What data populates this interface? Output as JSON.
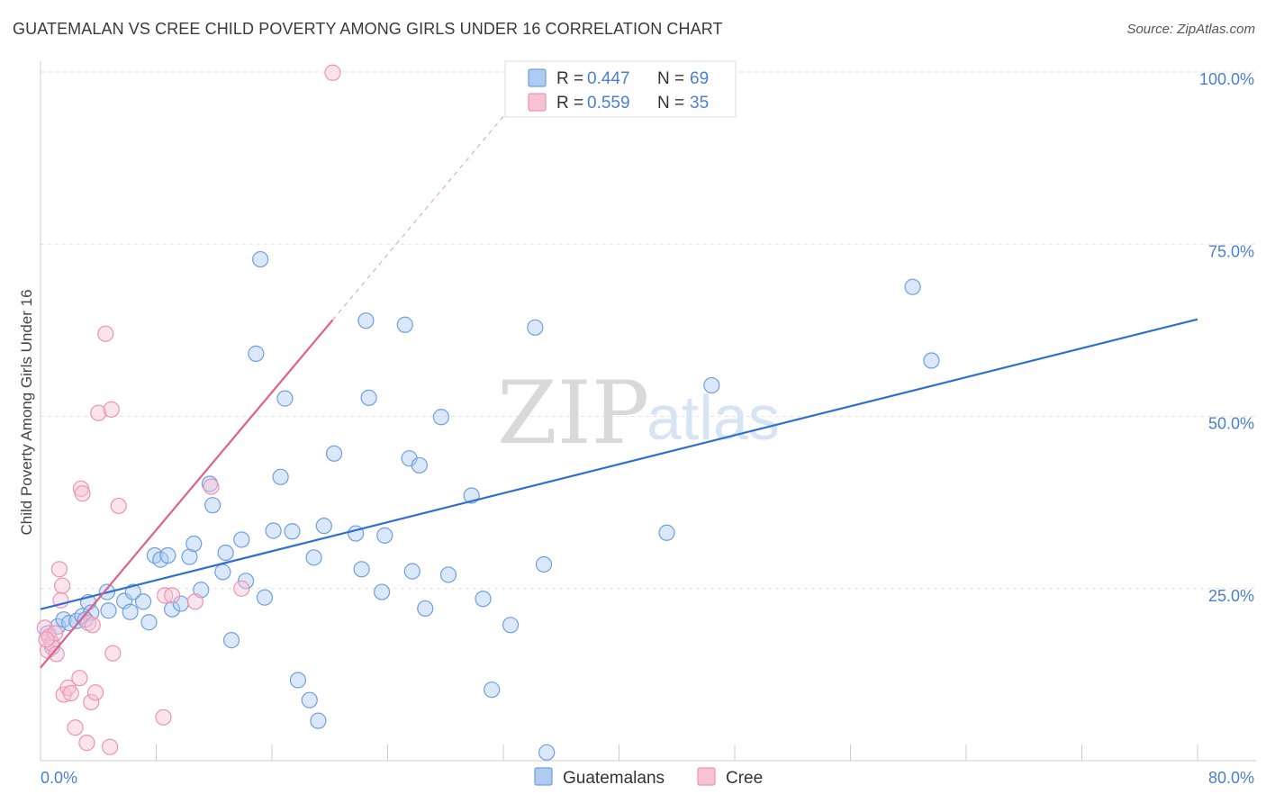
{
  "title": "GUATEMALAN VS CREE CHILD POVERTY AMONG GIRLS UNDER 16 CORRELATION CHART",
  "source": "Source: ZipAtlas.com",
  "watermark": {
    "zip": "ZIP",
    "atlas": "atlas"
  },
  "colors": {
    "blue": "#6f9fe0",
    "blue_fill": "#aecbf2",
    "blue_line": "#2f6fd0",
    "pink": "#ee93b0",
    "pink_fill": "#f7c3d4",
    "pink_line": "#e0608a",
    "tick_text": "#4a7fd0",
    "grid": "#e2e2e2"
  },
  "legend_top": {
    "r_label": "R =",
    "n_label": "N =",
    "entries": [
      {
        "series": "Guatemalans",
        "r": "0.447",
        "n": "69"
      },
      {
        "series": "Cree",
        "r": "0.559",
        "n": "35"
      }
    ]
  },
  "chart_data": {
    "type": "scatter",
    "title": "GUATEMALAN VS CREE CHILD POVERTY AMONG GIRLS UNDER 16 CORRELATION CHART",
    "xlabel": "",
    "ylabel": "Child Poverty Among Girls Under 16",
    "xlim": [
      0,
      80
    ],
    "ylim": [
      0,
      100
    ],
    "x_tick_labels": [
      "0.0%",
      "80.0%"
    ],
    "y_tick_labels": [
      "25.0%",
      "50.0%",
      "75.0%",
      "100.0%"
    ],
    "y_ticks": [
      25,
      50,
      75,
      100
    ],
    "grid": true,
    "legend_position": "bottom-center",
    "series": [
      {
        "name": "Guatemalans",
        "color": "#6f9fe0",
        "points": [
          [
            0.5,
            18.5
          ],
          [
            1.2,
            19.5
          ],
          [
            1.6,
            20.5
          ],
          [
            2.0,
            20.0
          ],
          [
            2.5,
            20.3
          ],
          [
            2.9,
            21.0
          ],
          [
            3.3,
            23.0
          ],
          [
            3.5,
            21.5
          ],
          [
            4.6,
            24.5
          ],
          [
            4.7,
            21.8
          ],
          [
            5.8,
            23.2
          ],
          [
            6.2,
            21.6
          ],
          [
            6.4,
            24.5
          ],
          [
            7.1,
            23.1
          ],
          [
            7.5,
            20.1
          ],
          [
            7.9,
            29.8
          ],
          [
            8.3,
            29.2
          ],
          [
            8.8,
            29.8
          ],
          [
            9.1,
            22.0
          ],
          [
            9.7,
            22.8
          ],
          [
            10.3,
            29.6
          ],
          [
            10.6,
            31.5
          ],
          [
            11.1,
            24.8
          ],
          [
            11.7,
            40.2
          ],
          [
            11.9,
            37.1
          ],
          [
            12.6,
            27.4
          ],
          [
            12.8,
            30.2
          ],
          [
            13.2,
            17.5
          ],
          [
            13.9,
            32.1
          ],
          [
            14.2,
            26.1
          ],
          [
            14.9,
            59.1
          ],
          [
            15.2,
            72.8
          ],
          [
            15.5,
            23.7
          ],
          [
            16.1,
            33.4
          ],
          [
            16.6,
            41.2
          ],
          [
            16.9,
            52.6
          ],
          [
            17.4,
            33.3
          ],
          [
            17.8,
            11.7
          ],
          [
            18.6,
            8.8
          ],
          [
            18.9,
            29.5
          ],
          [
            19.2,
            5.8
          ],
          [
            19.6,
            34.1
          ],
          [
            20.3,
            44.6
          ],
          [
            21.8,
            33.0
          ],
          [
            22.2,
            27.8
          ],
          [
            22.5,
            63.9
          ],
          [
            22.7,
            52.7
          ],
          [
            23.6,
            24.5
          ],
          [
            23.8,
            32.7
          ],
          [
            25.2,
            63.3
          ],
          [
            25.5,
            43.9
          ],
          [
            25.7,
            27.5
          ],
          [
            26.2,
            42.9
          ],
          [
            26.6,
            22.1
          ],
          [
            27.7,
            49.9
          ],
          [
            28.2,
            27.0
          ],
          [
            29.8,
            38.5
          ],
          [
            30.6,
            23.5
          ],
          [
            31.2,
            10.3
          ],
          [
            32.5,
            19.7
          ],
          [
            34.2,
            62.9
          ],
          [
            34.8,
            28.5
          ],
          [
            35.0,
            1.2
          ],
          [
            43.3,
            33.1
          ],
          [
            46.4,
            54.5
          ],
          [
            60.3,
            68.8
          ],
          [
            61.6,
            58.1
          ],
          [
            0.8,
            16.5
          ],
          [
            3.1,
            20.5
          ]
        ]
      },
      {
        "name": "Cree",
        "color": "#ee93b0",
        "points": [
          [
            0.3,
            19.3
          ],
          [
            0.5,
            16.0
          ],
          [
            0.6,
            18.0
          ],
          [
            0.8,
            17.0
          ],
          [
            1.0,
            18.5
          ],
          [
            1.1,
            15.5
          ],
          [
            1.3,
            27.8
          ],
          [
            1.4,
            23.3
          ],
          [
            1.5,
            25.4
          ],
          [
            1.6,
            9.6
          ],
          [
            1.9,
            10.6
          ],
          [
            2.1,
            9.8
          ],
          [
            2.4,
            4.8
          ],
          [
            2.7,
            12.0
          ],
          [
            2.8,
            39.5
          ],
          [
            2.9,
            38.8
          ],
          [
            3.2,
            2.6
          ],
          [
            3.3,
            20.0
          ],
          [
            3.5,
            8.5
          ],
          [
            3.6,
            19.7
          ],
          [
            3.8,
            9.9
          ],
          [
            4.0,
            50.5
          ],
          [
            4.5,
            62.0
          ],
          [
            4.8,
            2.0
          ],
          [
            4.9,
            51.0
          ],
          [
            5.0,
            15.6
          ],
          [
            5.4,
            37.0
          ],
          [
            8.5,
            6.3
          ],
          [
            8.6,
            24.0
          ],
          [
            9.1,
            24.0
          ],
          [
            10.7,
            23.1
          ],
          [
            11.8,
            39.8
          ],
          [
            13.9,
            25.0
          ],
          [
            20.2,
            99.9
          ],
          [
            0.4,
            17.6
          ]
        ]
      }
    ],
    "trend_lines": [
      {
        "series": "Guatemalans",
        "x": [
          0,
          80
        ],
        "y": [
          22.0,
          64.1
        ]
      },
      {
        "series": "Cree",
        "solid_x": [
          0,
          20.2
        ],
        "solid_y": [
          13.5,
          64.0
        ],
        "dashed_x": [
          20.2,
          32.3
        ],
        "dashed_y": [
          64.0,
          94.3
        ]
      }
    ]
  }
}
